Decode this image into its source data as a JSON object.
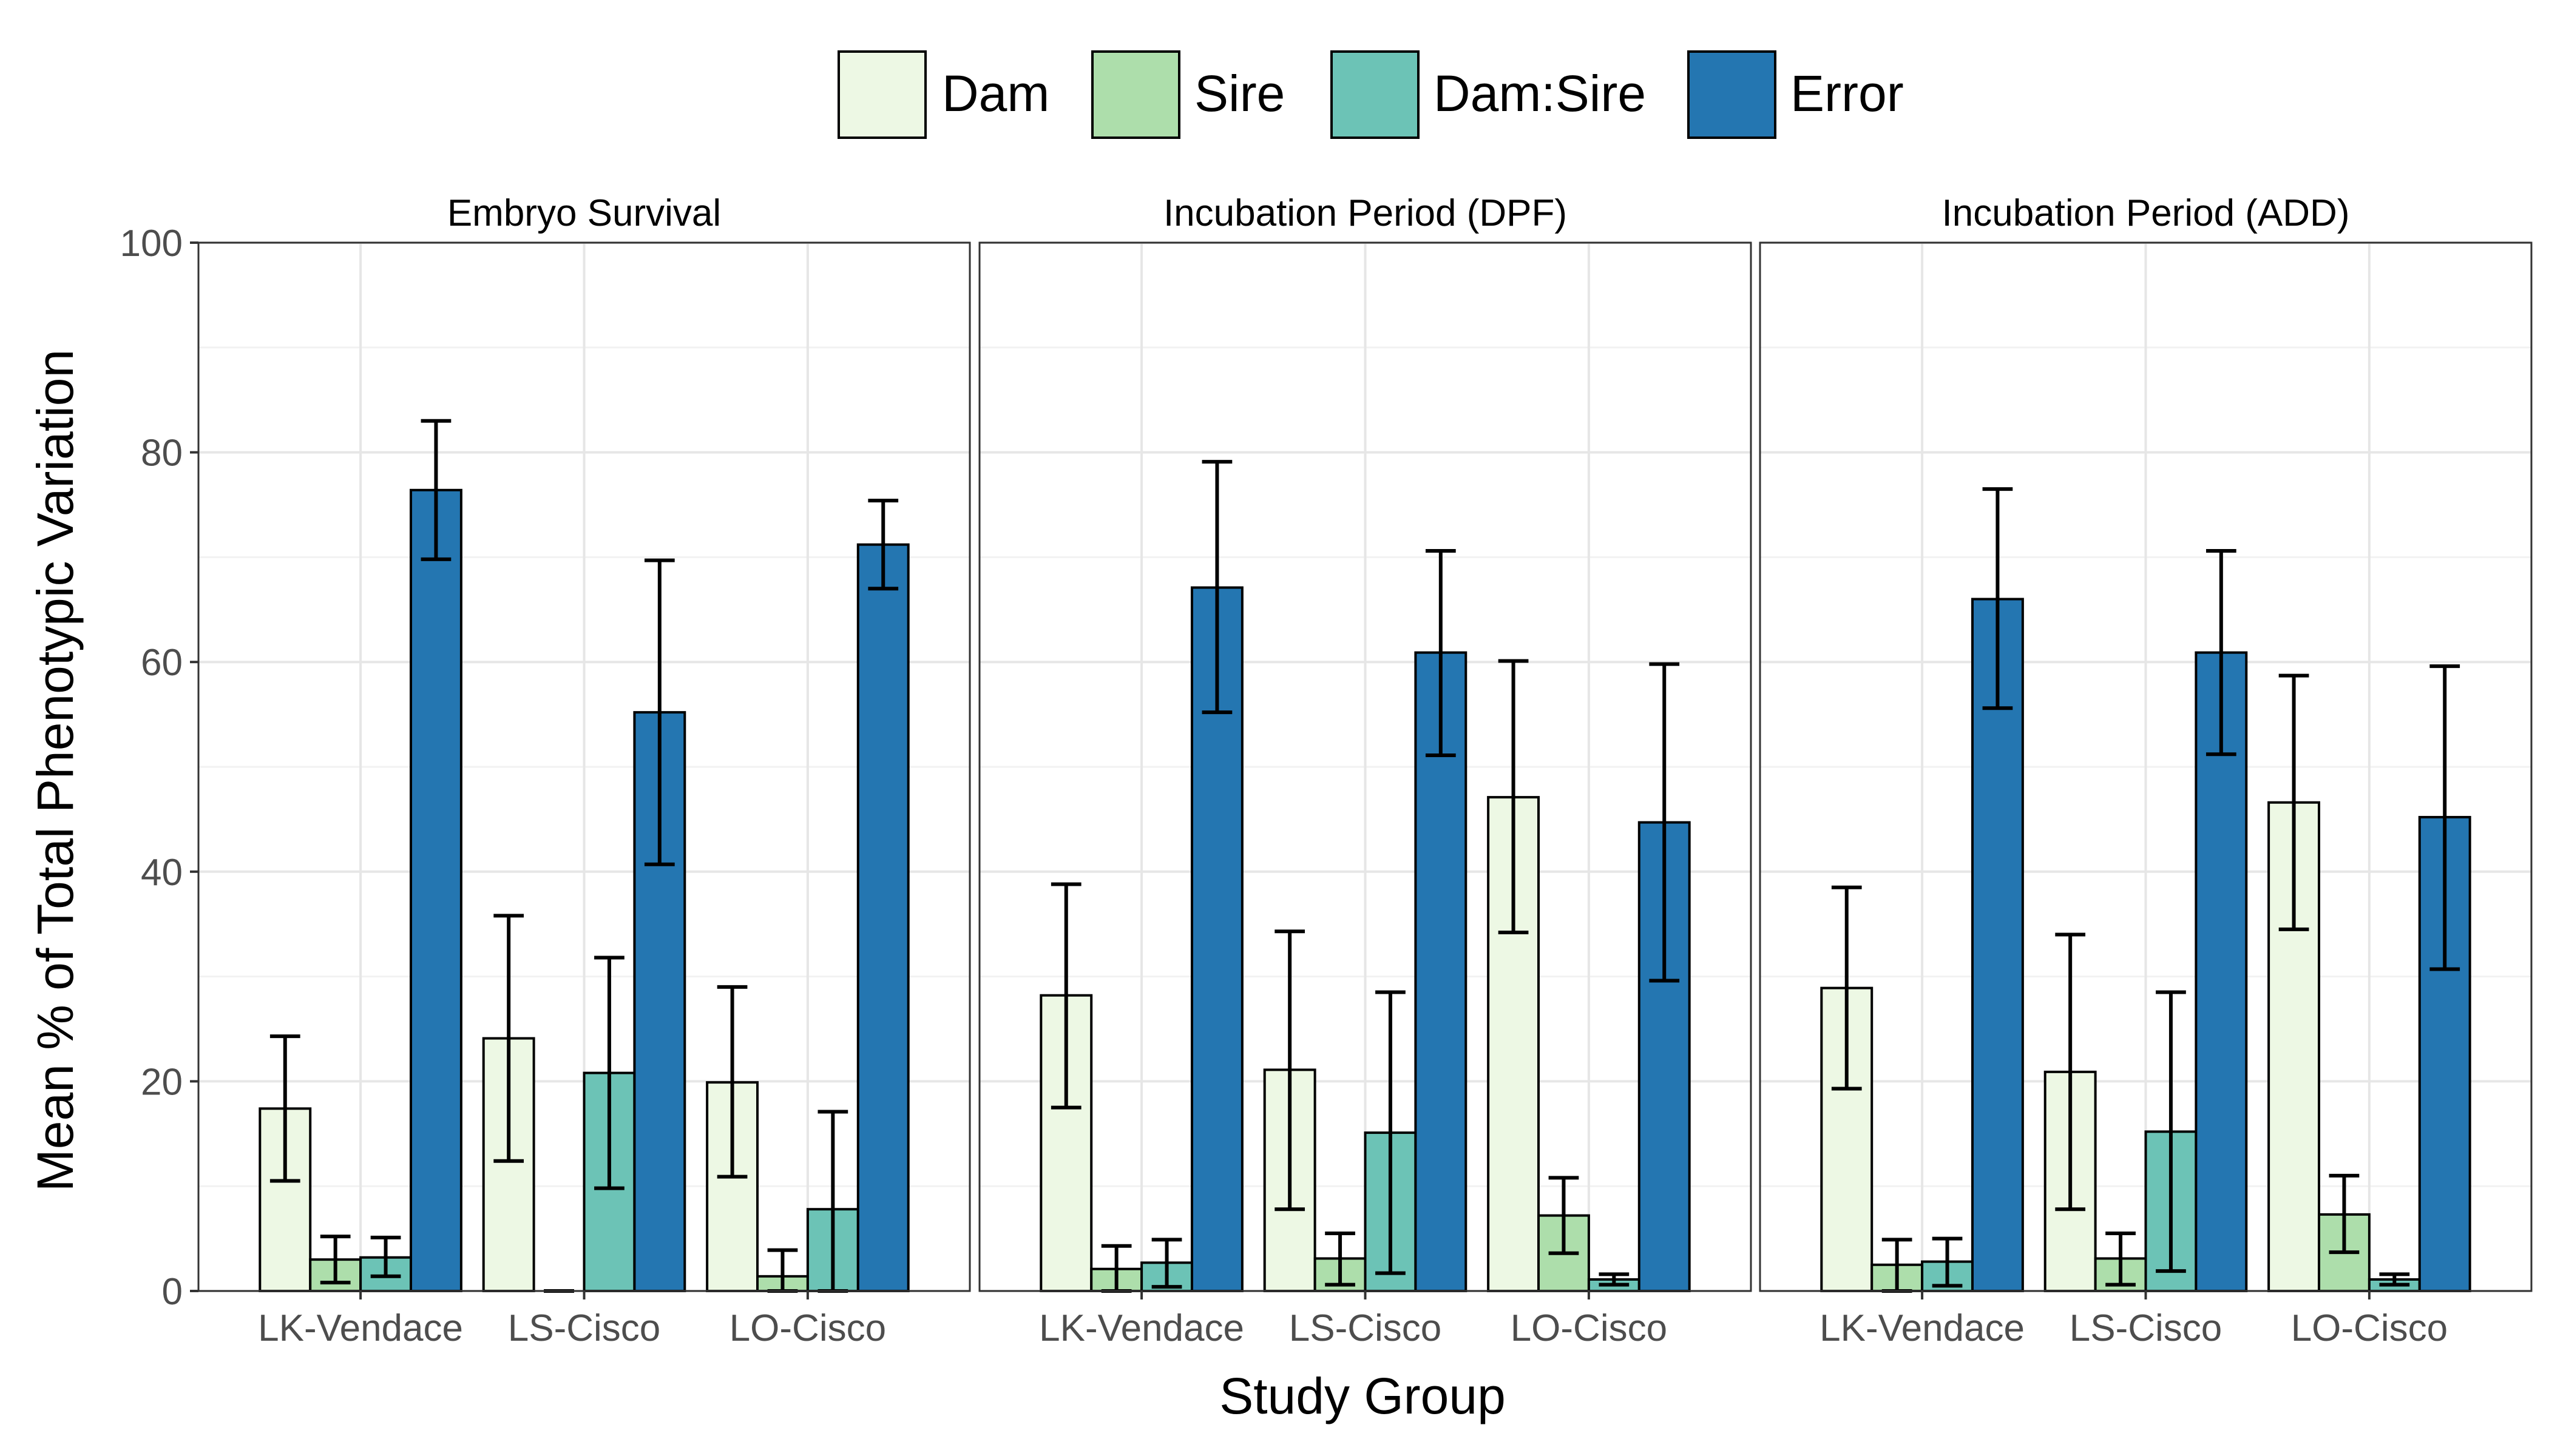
{
  "chart_data": {
    "type": "bar",
    "xlabel": "Study Group",
    "ylabel": "Mean % of Total Phenotypic Variation",
    "ylim": [
      0,
      100
    ],
    "yticks": [
      "0",
      "20",
      "40",
      "60",
      "80",
      "100"
    ],
    "grid": true,
    "legend_position": "top",
    "categories": [
      "LK-Vendace",
      "LS-Cisco",
      "LO-Cisco"
    ],
    "series_info": [
      {
        "name": "Dam",
        "color": "#edf8e4"
      },
      {
        "name": "Sire",
        "color": "#addeab"
      },
      {
        "name": "Dam:Sire",
        "color": "#6cc3b6"
      },
      {
        "name": "Error",
        "color": "#2476b1"
      }
    ],
    "panels": [
      {
        "title": "Embryo Survival",
        "series": [
          {
            "name": "Dam",
            "values": [
              17.4,
              24.1,
              19.9
            ],
            "lower": [
              10.5,
              12.4,
              10.9
            ],
            "upper": [
              24.3,
              35.8,
              29.0
            ]
          },
          {
            "name": "Sire",
            "values": [
              3.0,
              0.0,
              1.4
            ],
            "lower": [
              0.8,
              0.0,
              0.0
            ],
            "upper": [
              5.2,
              0.0,
              3.9
            ]
          },
          {
            "name": "Dam:Sire",
            "values": [
              3.2,
              20.8,
              7.8
            ],
            "lower": [
              1.4,
              9.8,
              0.0
            ],
            "upper": [
              5.1,
              31.8,
              17.1
            ]
          },
          {
            "name": "Error",
            "values": [
              76.4,
              55.2,
              71.2
            ],
            "lower": [
              69.8,
              40.7,
              67.0
            ],
            "upper": [
              83.0,
              69.7,
              75.4
            ]
          }
        ]
      },
      {
        "title": "Incubation Period (DPF)",
        "series": [
          {
            "name": "Dam",
            "values": [
              28.2,
              21.1,
              47.1
            ],
            "lower": [
              17.5,
              7.8,
              34.2
            ],
            "upper": [
              38.8,
              34.3,
              60.1
            ]
          },
          {
            "name": "Sire",
            "values": [
              2.1,
              3.1,
              7.2
            ],
            "lower": [
              0.0,
              0.6,
              3.6
            ],
            "upper": [
              4.3,
              5.5,
              10.8
            ]
          },
          {
            "name": "Dam:Sire",
            "values": [
              2.7,
              15.1,
              1.1
            ],
            "lower": [
              0.4,
              1.7,
              0.6
            ],
            "upper": [
              4.9,
              28.5,
              1.6
            ]
          },
          {
            "name": "Error",
            "values": [
              67.1,
              60.9,
              44.7
            ],
            "lower": [
              55.2,
              51.1,
              29.6
            ],
            "upper": [
              79.1,
              70.6,
              59.8
            ]
          }
        ]
      },
      {
        "title": "Incubation Period (ADD)",
        "series": [
          {
            "name": "Dam",
            "values": [
              28.9,
              20.9,
              46.6
            ],
            "lower": [
              19.3,
              7.8,
              34.5
            ],
            "upper": [
              38.5,
              34.0,
              58.7
            ]
          },
          {
            "name": "Sire",
            "values": [
              2.5,
              3.1,
              7.3
            ],
            "lower": [
              0.0,
              0.6,
              3.7
            ],
            "upper": [
              4.9,
              5.5,
              11.0
            ]
          },
          {
            "name": "Dam:Sire",
            "values": [
              2.8,
              15.2,
              1.1
            ],
            "lower": [
              0.5,
              1.9,
              0.6
            ],
            "upper": [
              5.0,
              28.5,
              1.6
            ]
          },
          {
            "name": "Error",
            "values": [
              66.0,
              60.9,
              45.2
            ],
            "lower": [
              55.6,
              51.2,
              30.7
            ],
            "upper": [
              76.5,
              70.6,
              59.6
            ]
          }
        ]
      }
    ]
  }
}
